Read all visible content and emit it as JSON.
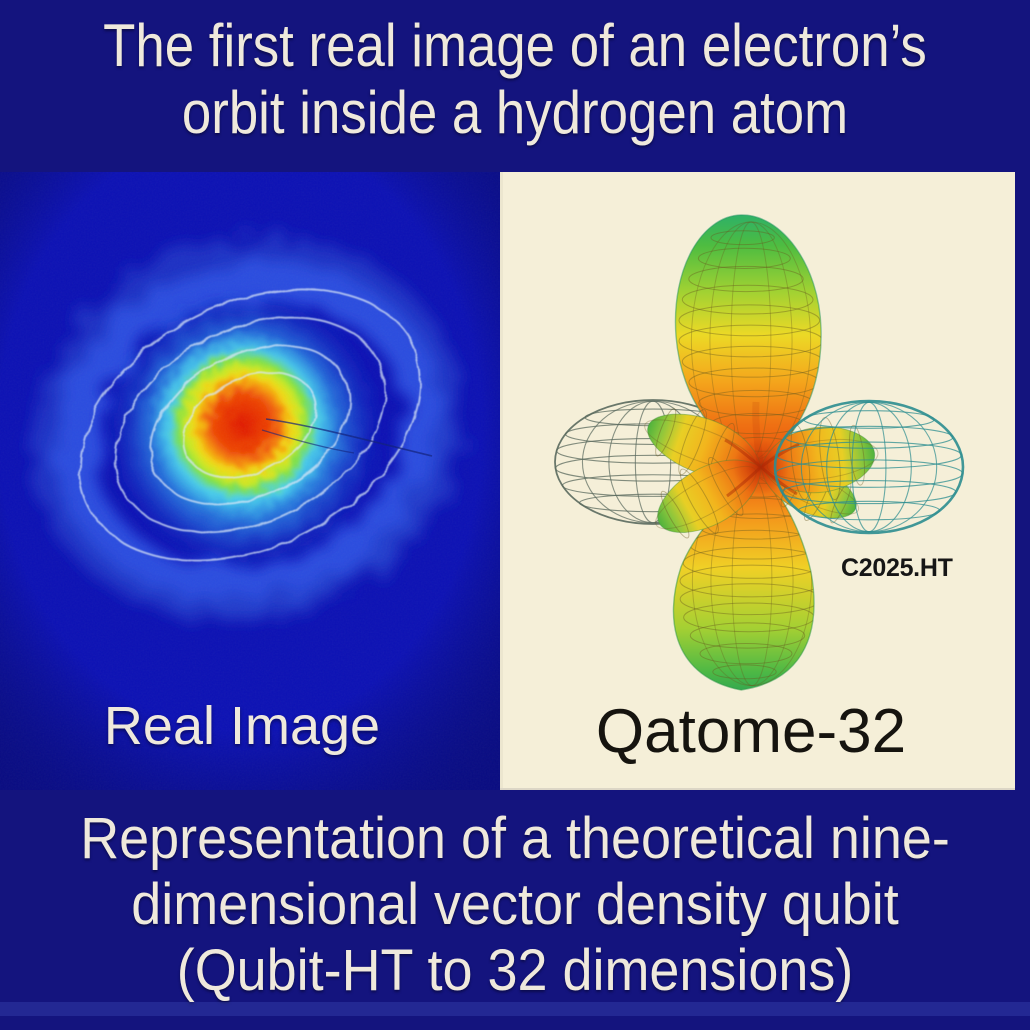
{
  "title": {
    "line1": "The first real image of an electron’s",
    "line2": "orbit inside a hydrogen atom"
  },
  "left_panel": {
    "caption": "Real Image",
    "content": "false-color heatmap of an electron orbital with four white contour ellipses around a red-hot core",
    "colors": {
      "photo_blue": "#0c11b4",
      "ring_blue": "#2b50e2",
      "cyan": "#3ecdee",
      "core_red": "#e01a03",
      "core_yellow": "#f3d914",
      "contour_white": "#dbe7f8"
    }
  },
  "right_panel": {
    "caption": "Qatome-32",
    "watermark": "C2025.HT",
    "content": "3D rainbow orbital render: two large vertical lobes, four small lobes, two wireframe rings",
    "colors": {
      "panel_cream": "#f5efd8",
      "lobe_green": "#4dbc41",
      "lobe_yellow": "#ecd926",
      "lobe_orange": "#ef7013",
      "lobe_red": "#e8500c",
      "wireframe_teal": "#2c8d90",
      "wireframe_gray": "#5a695e",
      "label_black": "#161616"
    }
  },
  "footer": {
    "line1": "Representation of a theoretical nine-",
    "line2": "dimensional vector density qubit",
    "line3": "(Qubit-HT to 32 dimensions)"
  },
  "colors": {
    "background_navy": "#14147e",
    "text_cream": "#efe9dc"
  }
}
